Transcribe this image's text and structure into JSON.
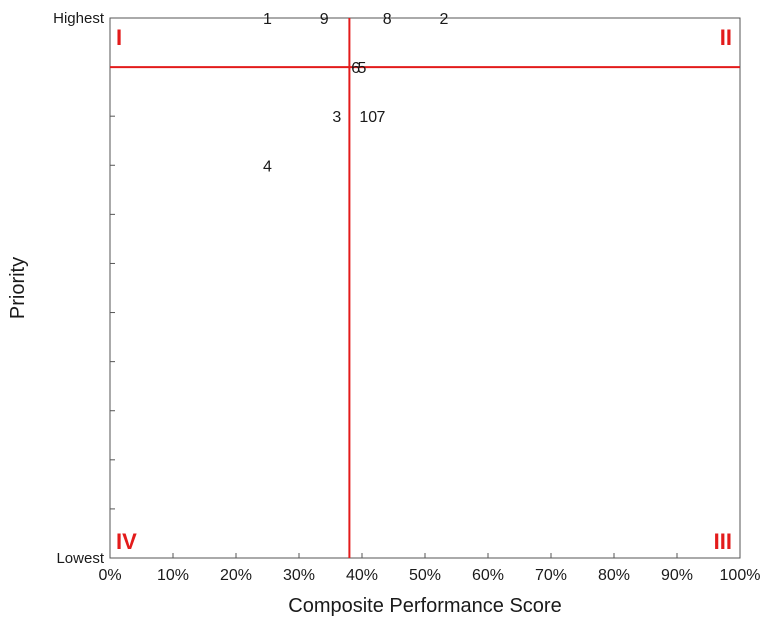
{
  "chart_data": {
    "type": "scatter",
    "xlabel": "Composite Performance Score",
    "ylabel": "Priority",
    "xlim": [
      0,
      100
    ],
    "x_ticks": [
      "0%",
      "10%",
      "20%",
      "30%",
      "40%",
      "50%",
      "60%",
      "70%",
      "80%",
      "90%",
      "100%"
    ],
    "y_top_label": "Highest",
    "y_bottom_label": "Lowest",
    "y_tick_count": 10,
    "grid": false,
    "threshold_x": 38,
    "threshold_y": 10,
    "quadrants": {
      "top_left": "I",
      "top_right": "II",
      "bottom_right": "III",
      "bottom_left": "IV"
    },
    "points": [
      {
        "label": "1",
        "x": 25,
        "y": 11
      },
      {
        "label": "9",
        "x": 34,
        "y": 11
      },
      {
        "label": "8",
        "x": 44,
        "y": 11
      },
      {
        "label": "2",
        "x": 53,
        "y": 11
      },
      {
        "label": "6",
        "x": 39,
        "y": 10
      },
      {
        "label": "5",
        "x": 40,
        "y": 10
      },
      {
        "label": "3",
        "x": 36,
        "y": 9
      },
      {
        "label": "10",
        "x": 41,
        "y": 9
      },
      {
        "label": "7",
        "x": 43,
        "y": 9
      },
      {
        "label": "4",
        "x": 25,
        "y": 8
      }
    ],
    "colors": {
      "threshold_line": "#e31b1b",
      "quadrant_label": "#e31b1b",
      "axis": "#555555",
      "text": "#1a1a1a"
    }
  }
}
